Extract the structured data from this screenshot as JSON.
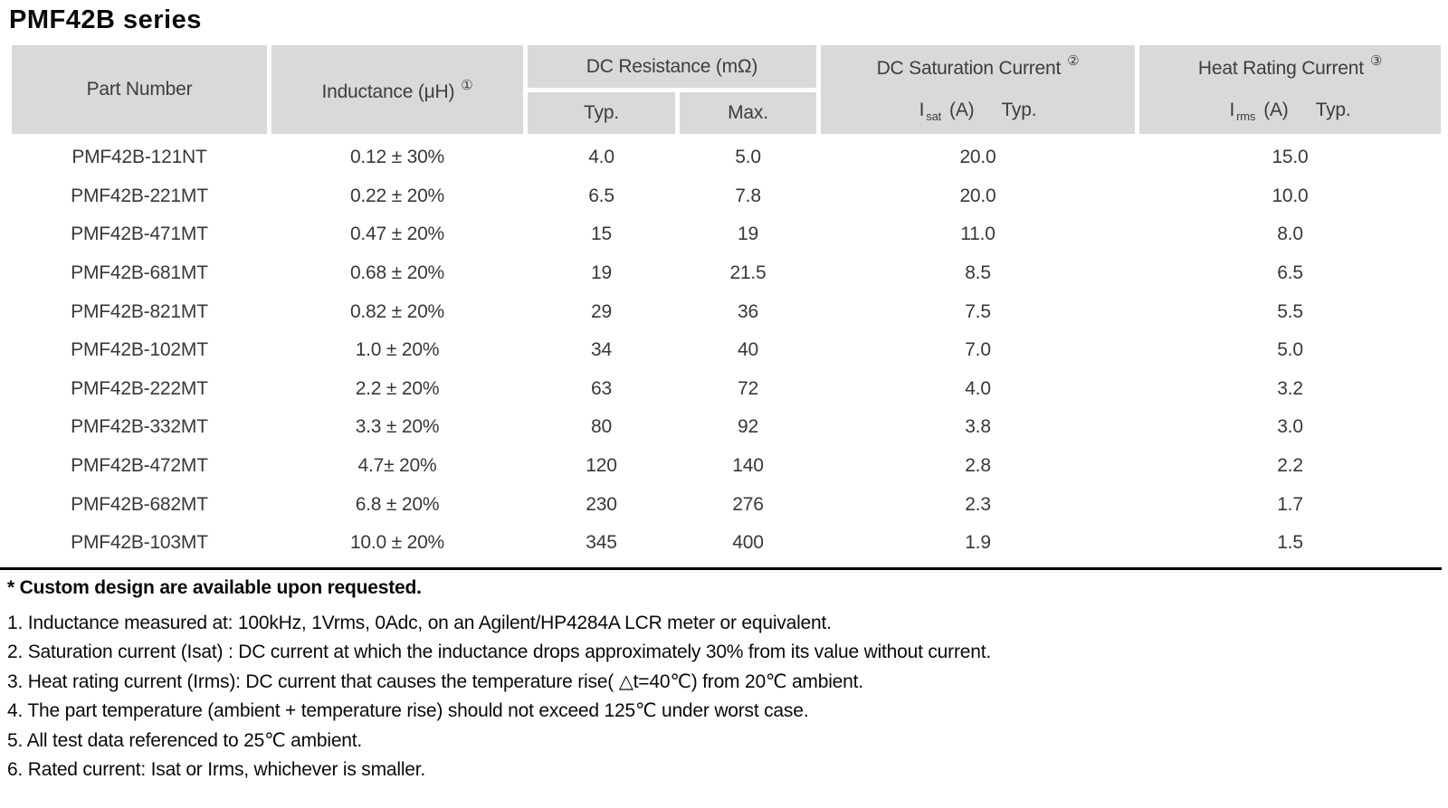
{
  "title": "PMF42B series",
  "colors": {
    "header_bg": "#d9d9d9",
    "table_text": "#3d3d3d",
    "divider": "#000000"
  },
  "table": {
    "columns": {
      "part_number": "Part Number",
      "inductance_label": "Inductance (μH)",
      "inductance_note_ref": "①",
      "dc_resistance_label": "DC Resistance (mΩ)",
      "dcr_typ": "Typ.",
      "dcr_max": "Max.",
      "saturation_label": "DC Saturation Current",
      "saturation_note_ref": "②",
      "saturation_symbol": "I",
      "saturation_symbol_sub": "sat",
      "saturation_unit": "(A)",
      "saturation_qualifier": "Typ.",
      "heat_label": "Heat Rating Current",
      "heat_note_ref": "③",
      "heat_symbol": "I",
      "heat_symbol_sub": "rms",
      "heat_unit": "(A)",
      "heat_qualifier": "Typ."
    },
    "rows": [
      {
        "part": "PMF42B-121NT",
        "inductance": "0.12 ± 30%",
        "dcr_typ": "4.0",
        "dcr_max": "5.0",
        "isat": "20.0",
        "irms": "15.0"
      },
      {
        "part": "PMF42B-221MT",
        "inductance": "0.22 ± 20%",
        "dcr_typ": "6.5",
        "dcr_max": "7.8",
        "isat": "20.0",
        "irms": "10.0"
      },
      {
        "part": "PMF42B-471MT",
        "inductance": "0.47 ± 20%",
        "dcr_typ": "15",
        "dcr_max": "19",
        "isat": "11.0",
        "irms": "8.0"
      },
      {
        "part": "PMF42B-681MT",
        "inductance": "0.68 ± 20%",
        "dcr_typ": "19",
        "dcr_max": "21.5",
        "isat": "8.5",
        "irms": "6.5"
      },
      {
        "part": "PMF42B-821MT",
        "inductance": "0.82 ± 20%",
        "dcr_typ": "29",
        "dcr_max": "36",
        "isat": "7.5",
        "irms": "5.5"
      },
      {
        "part": "PMF42B-102MT",
        "inductance": "1.0 ± 20%",
        "dcr_typ": "34",
        "dcr_max": "40",
        "isat": "7.0",
        "irms": "5.0"
      },
      {
        "part": "PMF42B-222MT",
        "inductance": "2.2 ± 20%",
        "dcr_typ": "63",
        "dcr_max": "72",
        "isat": "4.0",
        "irms": "3.2"
      },
      {
        "part": "PMF42B-332MT",
        "inductance": "3.3 ± 20%",
        "dcr_typ": "80",
        "dcr_max": "92",
        "isat": "3.8",
        "irms": "3.0"
      },
      {
        "part": "PMF42B-472MT",
        "inductance": "4.7± 20%",
        "dcr_typ": "120",
        "dcr_max": "140",
        "isat": "2.8",
        "irms": "2.2"
      },
      {
        "part": "PMF42B-682MT",
        "inductance": "6.8 ± 20%",
        "dcr_typ": "230",
        "dcr_max": "276",
        "isat": "2.3",
        "irms": "1.7"
      },
      {
        "part": "PMF42B-103MT",
        "inductance": "10.0 ± 20%",
        "dcr_typ": "345",
        "dcr_max": "400",
        "isat": "1.9",
        "irms": "1.5"
      }
    ]
  },
  "notes": {
    "star": "* Custom design are available upon requested.",
    "items": [
      "1. Inductance measured at: 100kHz, 1Vrms, 0Adc, on an Agilent/HP4284A LCR meter or equivalent.",
      "2. Saturation current (Isat) : DC current at which the inductance drops approximately 30% from its value without current.",
      "3. Heat rating current (Irms): DC current that causes the temperature rise( △t=40℃) from 20℃ ambient.",
      "4. The part temperature (ambient + temperature rise) should not exceed 125℃ under worst case.",
      "5. All test data referenced to 25℃ ambient.",
      "6. Rated current: Isat or Irms, whichever is smaller."
    ]
  }
}
